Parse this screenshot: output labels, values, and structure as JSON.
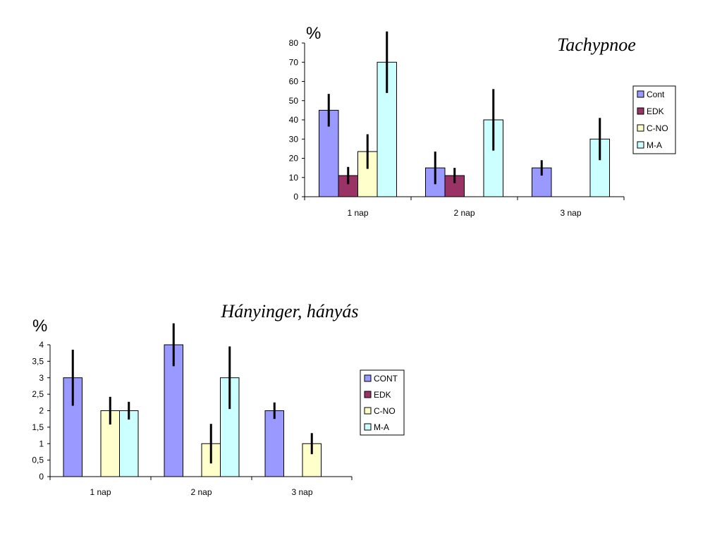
{
  "chart_data": [
    {
      "type": "bar",
      "title": "Tachypnoe",
      "ylabel": "%",
      "xlabel": "",
      "categories": [
        "1 nap",
        "2 nap",
        "3 nap"
      ],
      "ylim": [
        0,
        80
      ],
      "yticks": [
        "0",
        "10",
        "20",
        "30",
        "40",
        "50",
        "60",
        "70",
        "80"
      ],
      "grid": false,
      "legend_position": "right",
      "series": [
        {
          "name": "Cont",
          "color": "#9999ff",
          "values": [
            45,
            15,
            15
          ],
          "errors": [
            8.5,
            8.5,
            4
          ]
        },
        {
          "name": "EDK",
          "color": "#993366",
          "values": [
            11,
            11,
            null
          ],
          "errors": [
            4.5,
            4,
            null
          ]
        },
        {
          "name": "C-NO",
          "color": "#ffffcc",
          "values": [
            23.5,
            null,
            null
          ],
          "errors": [
            9,
            null,
            null
          ]
        },
        {
          "name": "M-A",
          "color": "#ccffff",
          "values": [
            70,
            40,
            30
          ],
          "errors": [
            16,
            16,
            11
          ]
        }
      ]
    },
    {
      "type": "bar",
      "title": "Hányinger, hányás",
      "ylabel": "%",
      "xlabel": "",
      "categories": [
        "1 nap",
        "2 nap",
        "3 nap"
      ],
      "ylim": [
        0,
        4
      ],
      "yticks": [
        "0",
        "0,5",
        "1",
        "1,5",
        "2",
        "2,5",
        "3",
        "3,5",
        "4"
      ],
      "grid": false,
      "legend_position": "right",
      "series": [
        {
          "name": "CONT",
          "color": "#9999ff",
          "values": [
            3,
            4,
            2
          ],
          "errors": [
            0.85,
            0.65,
            0.25
          ]
        },
        {
          "name": "EDK",
          "color": "#993366",
          "values": [
            null,
            null,
            null
          ],
          "errors": [
            null,
            null,
            null
          ]
        },
        {
          "name": "C-NO",
          "color": "#ffffcc",
          "values": [
            2,
            1,
            1
          ],
          "errors": [
            0.42,
            0.6,
            0.32
          ]
        },
        {
          "name": "M-A",
          "color": "#ccffff",
          "values": [
            2,
            3,
            null
          ],
          "errors": [
            0.27,
            0.95,
            null
          ]
        }
      ]
    }
  ]
}
